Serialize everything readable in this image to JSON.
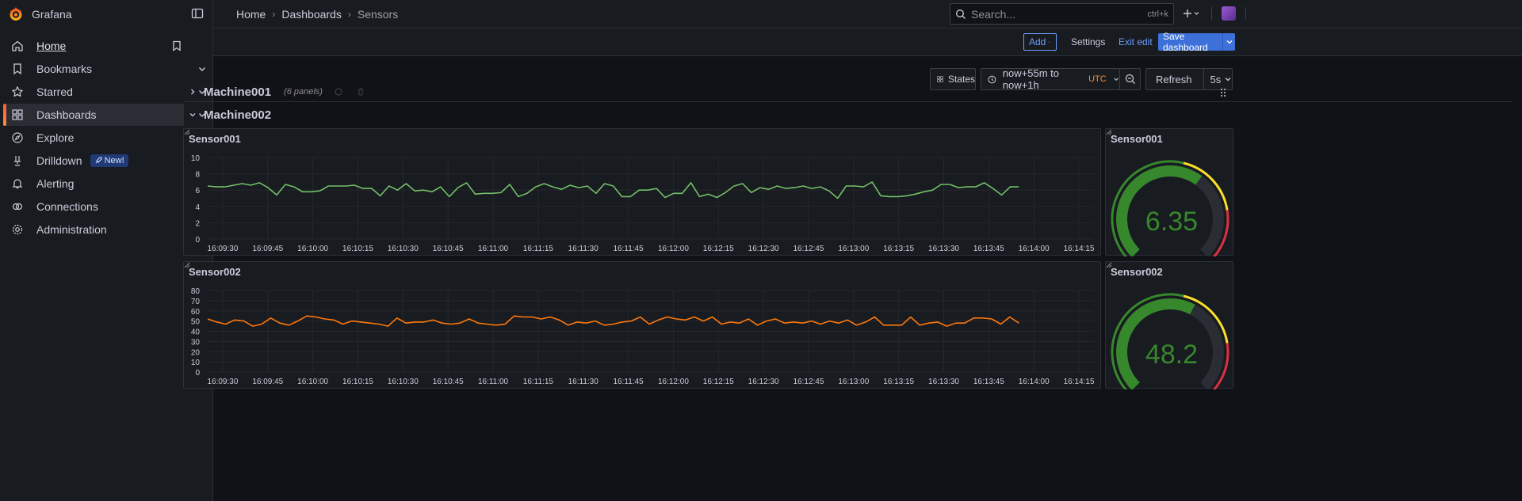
{
  "app": {
    "title": "Grafana"
  },
  "sidebar": {
    "items": [
      {
        "label": "Home",
        "icon": "home-icon"
      },
      {
        "label": "Bookmarks",
        "icon": "bookmark-icon"
      },
      {
        "label": "Starred",
        "icon": "star-icon"
      },
      {
        "label": "Dashboards",
        "icon": "dashboards-icon"
      },
      {
        "label": "Explore",
        "icon": "compass-icon"
      },
      {
        "label": "Drilldown",
        "icon": "drilldown-icon",
        "badge": "New!"
      },
      {
        "label": "Alerting",
        "icon": "bell-icon"
      },
      {
        "label": "Connections",
        "icon": "plug-icon"
      },
      {
        "label": "Administration",
        "icon": "gear-icon"
      }
    ]
  },
  "breadcrumbs": [
    "Home",
    "Dashboards",
    "Sensors"
  ],
  "search": {
    "placeholder": "Search...",
    "shortcut": "ctrl+k"
  },
  "toolbar": {
    "add_label": "Add",
    "settings_label": "Settings",
    "exit_label": "Exit edit",
    "save_label": "Save dashboard"
  },
  "controls": {
    "states_label": "States",
    "time_range": "now+55m to now+1h",
    "timezone": "UTC",
    "refresh_label": "Refresh",
    "refresh_rate": "5s"
  },
  "rows": [
    {
      "title": "Machine001",
      "count": "(6 panels)",
      "collapsed": true
    },
    {
      "title": "Machine002",
      "collapsed": false
    }
  ],
  "colors": {
    "accent": "#3d71d9",
    "sensor001_series": "#73bf69",
    "sensor002_series": "#ff780a",
    "gauge_green": "#37872d",
    "gauge_yellow": "#fade2a",
    "gauge_red": "#e02f44"
  },
  "chart_data": [
    {
      "type": "line",
      "title": "Sensor001",
      "ylim": [
        0,
        10
      ],
      "yticks": [
        0,
        2,
        4,
        6,
        8,
        10
      ],
      "x_ticks": [
        "16:09:30",
        "16:09:45",
        "16:10:00",
        "16:10:15",
        "16:10:30",
        "16:10:45",
        "16:11:00",
        "16:11:15",
        "16:11:30",
        "16:11:45",
        "16:12:00",
        "16:12:15",
        "16:12:30",
        "16:12:45",
        "16:13:00",
        "16:13:15",
        "16:13:30",
        "16:13:45",
        "16:14:00",
        "16:14:15"
      ],
      "x_range": [
        "16:09:25",
        "16:14:20"
      ],
      "x_start": "16:09:25",
      "x_end": "16:13:55",
      "series": [
        {
          "values": [
            6.5,
            6.4,
            6.4,
            6.6,
            6.8,
            6.6,
            6.9,
            6.3,
            5.4,
            6.7,
            6.4,
            5.8,
            5.8,
            5.9,
            6.5,
            6.5,
            6.5,
            6.6,
            6.2,
            6.2,
            5.3,
            6.5,
            6.0,
            6.8,
            5.9,
            6.0,
            5.8,
            6.4,
            5.2,
            6.3,
            6.9,
            5.5,
            5.6,
            5.6,
            5.7,
            6.7,
            5.2,
            5.6,
            6.4,
            6.8,
            6.4,
            6.1,
            6.6,
            6.3,
            6.5,
            5.6,
            6.8,
            6.5,
            5.2,
            5.2,
            6.0,
            6.0,
            6.2,
            5.1,
            5.6,
            5.6,
            6.9,
            5.2,
            5.5,
            5.1,
            5.7,
            6.5,
            6.8,
            5.7,
            6.3,
            6.1,
            6.5,
            6.2,
            6.3,
            6.5,
            6.2,
            6.4,
            5.9,
            5.0,
            6.5,
            6.5,
            6.4,
            7.0,
            5.3,
            5.2,
            5.2,
            5.3,
            5.5,
            5.8,
            6.0,
            6.7,
            6.7,
            6.3,
            6.4,
            6.4,
            6.9,
            6.2,
            5.4,
            6.4,
            6.4
          ]
        }
      ]
    },
    {
      "type": "gauge",
      "title": "Sensor001",
      "value": "6.35",
      "min": 0,
      "max": 10
    },
    {
      "type": "line",
      "title": "Sensor002",
      "ylim": [
        0,
        80
      ],
      "yticks": [
        0,
        10,
        20,
        30,
        40,
        50,
        60,
        70,
        80
      ],
      "x_ticks": [
        "16:09:30",
        "16:09:45",
        "16:10:00",
        "16:10:15",
        "16:10:30",
        "16:10:45",
        "16:11:00",
        "16:11:15",
        "16:11:30",
        "16:11:45",
        "16:12:00",
        "16:12:15",
        "16:12:30",
        "16:12:45",
        "16:13:00",
        "16:13:15",
        "16:13:30",
        "16:13:45",
        "16:14:00",
        "16:14:15"
      ],
      "x_range": [
        "16:09:25",
        "16:14:20"
      ],
      "x_start": "16:09:25",
      "x_end": "16:13:55",
      "series": [
        {
          "values": [
            52,
            49,
            47,
            51,
            50,
            45,
            47,
            53,
            48,
            46,
            50,
            55,
            54,
            52,
            51,
            47,
            50,
            49,
            48,
            47,
            45,
            53,
            48,
            49,
            49,
            51,
            48,
            47,
            48,
            52,
            48,
            47,
            46,
            47,
            55,
            54,
            54,
            52,
            54,
            51,
            46,
            49,
            48,
            50,
            46,
            47,
            49,
            50,
            54,
            47,
            51,
            54,
            52,
            51,
            54,
            50,
            54,
            47,
            49,
            48,
            52,
            46,
            50,
            52,
            48,
            49,
            48,
            50,
            47,
            50,
            48,
            51,
            46,
            49,
            54,
            46,
            46,
            46,
            54,
            46,
            48,
            49,
            45,
            48,
            48,
            53,
            53,
            52,
            47,
            54,
            48
          ]
        }
      ]
    },
    {
      "type": "gauge",
      "title": "Sensor002",
      "value": "48.2",
      "min": 0,
      "max": 80
    }
  ]
}
